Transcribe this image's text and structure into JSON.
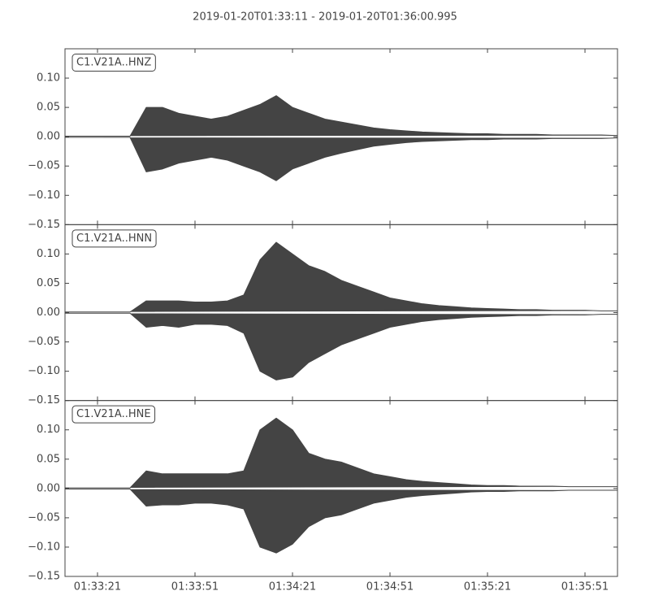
{
  "title": "2019-01-20T01:33:11  -  2019-01-20T01:36:00.995",
  "chart_data": [
    {
      "type": "waveform",
      "label": "C1.V21A..HNZ",
      "x": [
        "01:33:11",
        "01:33:16",
        "01:33:21",
        "01:33:26",
        "01:33:31",
        "01:33:36",
        "01:33:41",
        "01:33:46",
        "01:33:51",
        "01:33:56",
        "01:34:01",
        "01:34:06",
        "01:34:11",
        "01:34:16",
        "01:34:21",
        "01:34:26",
        "01:34:31",
        "01:34:36",
        "01:34:41",
        "01:34:46",
        "01:34:51",
        "01:34:56",
        "01:35:01",
        "01:35:06",
        "01:35:11",
        "01:35:16",
        "01:35:21",
        "01:35:26",
        "01:35:31",
        "01:35:36",
        "01:35:41",
        "01:35:46",
        "01:35:51",
        "01:35:56",
        "01:36:01"
      ],
      "series": [
        {
          "color": "#444444",
          "values": [
            0.001,
            0.001,
            0.001,
            0.001,
            0.001,
            0.05,
            0.05,
            0.04,
            0.035,
            0.03,
            0.035,
            0.045,
            0.055,
            0.07,
            0.05,
            0.04,
            0.03,
            0.025,
            0.02,
            0.015,
            0.012,
            0.01,
            0.008,
            0.007,
            0.006,
            0.005,
            0.005,
            0.004,
            0.004,
            0.004,
            0.003,
            0.003,
            0.003,
            0.003,
            0.002
          ]
        },
        {
          "color": "#444444",
          "values": [
            -0.001,
            -0.001,
            -0.001,
            -0.001,
            -0.001,
            -0.06,
            -0.055,
            -0.045,
            -0.04,
            -0.035,
            -0.04,
            -0.05,
            -0.06,
            -0.075,
            -0.055,
            -0.045,
            -0.035,
            -0.028,
            -0.022,
            -0.016,
            -0.013,
            -0.01,
            -0.008,
            -0.007,
            -0.006,
            -0.005,
            -0.005,
            -0.004,
            -0.004,
            -0.004,
            -0.003,
            -0.003,
            -0.003,
            -0.003,
            -0.002
          ]
        }
      ],
      "xlim": [
        "01:33:11",
        "01:36:01"
      ],
      "ylim": [
        -0.15,
        0.15
      ],
      "yticks": [
        {
          "value": -0.15,
          "label": "−0.15"
        },
        {
          "value": -0.1,
          "label": "−0.10"
        },
        {
          "value": -0.05,
          "label": "−0.05"
        },
        {
          "value": 0,
          "label": "0.00"
        },
        {
          "value": 0.05,
          "label": "0.05"
        },
        {
          "value": 0.1,
          "label": "0.10"
        }
      ]
    },
    {
      "type": "waveform",
      "label": "C1.V21A..HNN",
      "x": [
        "01:33:11",
        "01:33:16",
        "01:33:21",
        "01:33:26",
        "01:33:31",
        "01:33:36",
        "01:33:41",
        "01:33:46",
        "01:33:51",
        "01:33:56",
        "01:34:01",
        "01:34:06",
        "01:34:11",
        "01:34:16",
        "01:34:21",
        "01:34:26",
        "01:34:31",
        "01:34:36",
        "01:34:41",
        "01:34:46",
        "01:34:51",
        "01:34:56",
        "01:35:01",
        "01:35:06",
        "01:35:11",
        "01:35:16",
        "01:35:21",
        "01:35:26",
        "01:35:31",
        "01:35:36",
        "01:35:41",
        "01:35:46",
        "01:35:51",
        "01:35:56",
        "01:36:01"
      ],
      "series": [
        {
          "color": "#444444",
          "values": [
            0.001,
            0.001,
            0.001,
            0.001,
            0.001,
            0.02,
            0.02,
            0.02,
            0.018,
            0.018,
            0.02,
            0.03,
            0.09,
            0.12,
            0.1,
            0.08,
            0.07,
            0.055,
            0.045,
            0.035,
            0.025,
            0.02,
            0.015,
            0.012,
            0.01,
            0.008,
            0.007,
            0.006,
            0.005,
            0.005,
            0.004,
            0.004,
            0.004,
            0.003,
            0.003
          ]
        },
        {
          "color": "#444444",
          "values": [
            -0.001,
            -0.001,
            -0.001,
            -0.001,
            -0.001,
            -0.025,
            -0.022,
            -0.025,
            -0.02,
            -0.02,
            -0.022,
            -0.035,
            -0.1,
            -0.115,
            -0.11,
            -0.085,
            -0.07,
            -0.055,
            -0.045,
            -0.035,
            -0.025,
            -0.02,
            -0.015,
            -0.012,
            -0.01,
            -0.008,
            -0.007,
            -0.006,
            -0.005,
            -0.005,
            -0.004,
            -0.004,
            -0.004,
            -0.003,
            -0.003
          ]
        }
      ],
      "xlim": [
        "01:33:11",
        "01:36:01"
      ],
      "ylim": [
        -0.15,
        0.15
      ],
      "yticks": [
        {
          "value": -0.15,
          "label": "−0.15"
        },
        {
          "value": -0.1,
          "label": "−0.10"
        },
        {
          "value": -0.05,
          "label": "−0.05"
        },
        {
          "value": 0,
          "label": "0.00"
        },
        {
          "value": 0.05,
          "label": "0.05"
        },
        {
          "value": 0.1,
          "label": "0.10"
        }
      ]
    },
    {
      "type": "waveform",
      "label": "C1.V21A..HNE",
      "x": [
        "01:33:11",
        "01:33:16",
        "01:33:21",
        "01:33:26",
        "01:33:31",
        "01:33:36",
        "01:33:41",
        "01:33:46",
        "01:33:51",
        "01:33:56",
        "01:34:01",
        "01:34:06",
        "01:34:11",
        "01:34:16",
        "01:34:21",
        "01:34:26",
        "01:34:31",
        "01:34:36",
        "01:34:41",
        "01:34:46",
        "01:34:51",
        "01:34:56",
        "01:35:01",
        "01:35:06",
        "01:35:11",
        "01:35:16",
        "01:35:21",
        "01:35:26",
        "01:35:31",
        "01:35:36",
        "01:35:41",
        "01:35:46",
        "01:35:51",
        "01:35:56",
        "01:36:01"
      ],
      "series": [
        {
          "color": "#444444",
          "values": [
            0.001,
            0.001,
            0.001,
            0.001,
            0.001,
            0.03,
            0.025,
            0.025,
            0.025,
            0.025,
            0.025,
            0.03,
            0.1,
            0.12,
            0.1,
            0.06,
            0.05,
            0.045,
            0.035,
            0.025,
            0.02,
            0.015,
            0.012,
            0.01,
            0.008,
            0.006,
            0.005,
            0.005,
            0.004,
            0.004,
            0.004,
            0.003,
            0.003,
            0.003,
            0.003
          ]
        },
        {
          "color": "#444444",
          "values": [
            -0.001,
            -0.001,
            -0.001,
            -0.001,
            -0.001,
            -0.03,
            -0.028,
            -0.028,
            -0.025,
            -0.025,
            -0.028,
            -0.035,
            -0.1,
            -0.11,
            -0.095,
            -0.065,
            -0.05,
            -0.045,
            -0.035,
            -0.025,
            -0.02,
            -0.015,
            -0.012,
            -0.01,
            -0.008,
            -0.006,
            -0.005,
            -0.005,
            -0.004,
            -0.004,
            -0.004,
            -0.003,
            -0.003,
            -0.003,
            -0.003
          ]
        }
      ],
      "xlim": [
        "01:33:11",
        "01:36:01"
      ],
      "ylim": [
        -0.15,
        0.15
      ],
      "yticks": [
        {
          "value": -0.15,
          "label": "−0.15"
        },
        {
          "value": -0.1,
          "label": "−0.10"
        },
        {
          "value": -0.05,
          "label": "−0.05"
        },
        {
          "value": 0,
          "label": "0.00"
        },
        {
          "value": 0.05,
          "label": "0.05"
        },
        {
          "value": 0.1,
          "label": "0.10"
        }
      ],
      "xticks": [
        "01:33:21",
        "01:33:51",
        "01:34:21",
        "01:34:51",
        "01:35:21",
        "01:35:51"
      ]
    }
  ]
}
